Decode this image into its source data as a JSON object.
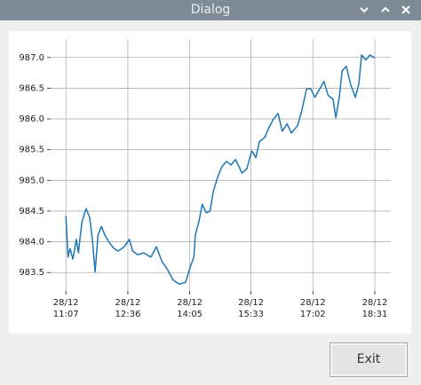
{
  "window": {
    "title": "Dialog"
  },
  "chart_data": {
    "type": "line",
    "x": [
      "28/12 11:07",
      "28/12 11:10",
      "28/12 11:13",
      "28/12 11:17",
      "28/12 11:22",
      "28/12 11:25",
      "28/12 11:30",
      "28/12 11:36",
      "28/12 11:41",
      "28/12 11:45",
      "28/12 11:49",
      "28/12 11:53",
      "28/12 11:58",
      "28/12 12:03",
      "28/12 12:08",
      "28/12 12:16",
      "28/12 12:22",
      "28/12 12:31",
      "28/12 12:38",
      "28/12 12:43",
      "28/12 12:50",
      "28/12 12:59",
      "28/12 13:09",
      "28/12 13:17",
      "28/12 13:25",
      "28/12 13:32",
      "28/12 13:41",
      "28/12 13:50",
      "28/12 13:59",
      "28/12 14:06",
      "28/12 14:11",
      "28/12 14:13",
      "28/12 14:18",
      "28/12 14:23",
      "28/12 14:29",
      "28/12 14:34",
      "28/12 14:39",
      "28/12 14:45",
      "28/12 14:51",
      "28/12 14:58",
      "28/12 15:04",
      "28/12 15:11",
      "28/12 15:20",
      "28/12 15:27",
      "28/12 15:34",
      "28/12 15:40",
      "28/12 15:45",
      "28/12 15:53",
      "28/12 15:58",
      "28/12 16:05",
      "28/12 16:12",
      "28/12 16:18",
      "28/12 16:25",
      "28/12 16:31",
      "28/12 16:40",
      "28/12 16:46",
      "28/12 16:53",
      "28/12 16:59",
      "28/12 17:05",
      "28/12 17:12",
      "28/12 17:18",
      "28/12 17:24",
      "28/12 17:31",
      "28/12 17:35",
      "28/12 17:40",
      "28/12 17:44",
      "28/12 17:50",
      "28/12 17:56",
      "28/12 18:03",
      "28/12 18:08",
      "28/12 18:12",
      "28/12 18:18",
      "28/12 18:24",
      "28/12 18:31"
    ],
    "series": [
      {
        "color": "#1f77b4",
        "values": [
          984.42,
          983.75,
          983.89,
          983.72,
          984.04,
          983.82,
          984.32,
          984.54,
          984.4,
          984.04,
          983.51,
          984.11,
          984.25,
          984.11,
          984.01,
          983.89,
          983.85,
          983.92,
          984.04,
          983.85,
          983.79,
          983.82,
          983.75,
          983.92,
          983.68,
          983.57,
          983.38,
          983.31,
          983.34,
          983.6,
          983.75,
          984.11,
          984.32,
          984.61,
          984.47,
          984.5,
          984.83,
          985.05,
          985.22,
          985.31,
          985.25,
          985.34,
          985.12,
          985.19,
          985.48,
          985.37,
          985.63,
          985.7,
          985.84,
          985.99,
          986.09,
          985.8,
          985.92,
          985.77,
          985.89,
          986.13,
          986.49,
          986.49,
          986.35,
          986.49,
          986.61,
          986.38,
          986.32,
          986.02,
          986.35,
          986.78,
          986.86,
          986.57,
          986.35,
          986.57,
          987.04,
          986.96,
          987.04,
          986.99
        ]
      }
    ],
    "xlim": [
      "28/12 10:45",
      "28/12 18:54"
    ],
    "xticks": [
      "28/12 11:07",
      "28/12 12:36",
      "28/12 14:05",
      "28/12 15:33",
      "28/12 17:02",
      "28/12 18:31"
    ],
    "ylim": [
      983.2,
      987.3
    ],
    "yticks": [
      983.5,
      {
        "value": 984,
        "label": "984.0"
      },
      984.5,
      {
        "value": 985,
        "label": "985.0"
      },
      985.5,
      {
        "value": 986,
        "label": "986.0"
      },
      986.5,
      {
        "value": 987,
        "label": "987.0"
      }
    ],
    "grid": true
  },
  "buttons": [
    {
      "label": "Exit"
    }
  ]
}
